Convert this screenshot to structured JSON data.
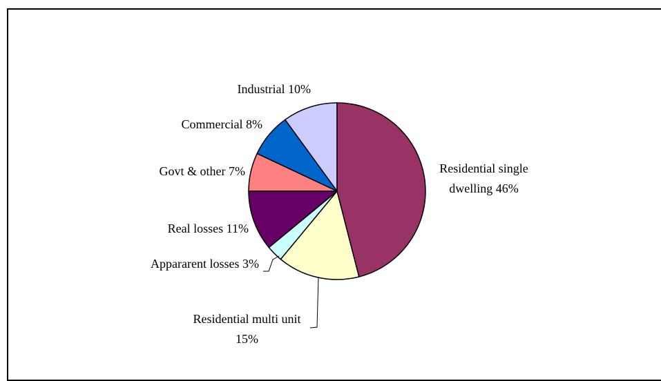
{
  "chart_data": {
    "type": "pie",
    "categories": [
      "Residential single dwelling",
      "Residential multi unit",
      "Appararent losses",
      "Real losses",
      "Govt & other",
      "Commercial",
      "Industrial"
    ],
    "values": [
      46,
      15,
      3,
      11,
      7,
      8,
      10
    ],
    "value_labels": [
      "46%",
      "15%",
      "3%",
      "11%",
      "7%",
      "8%",
      "10%"
    ],
    "colors": [
      "#993366",
      "#FFFFCC",
      "#CCFFFF",
      "#660066",
      "#FF8080",
      "#0066CC",
      "#CCCCFF"
    ]
  }
}
